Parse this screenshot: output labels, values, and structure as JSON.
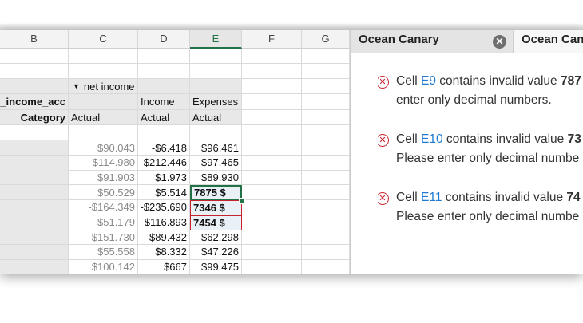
{
  "columns": [
    "B",
    "C",
    "D",
    "E",
    "F",
    "G"
  ],
  "selected_column": "E",
  "header_rows": {
    "c_row1": "net income",
    "b_row2": "A_income_acc",
    "d_row2": "Income",
    "e_row2": "Expenses",
    "b_row3": "Category",
    "c_row3": "Actual",
    "d_row3": "Actual",
    "e_row3": "Actual"
  },
  "rows": [
    {
      "c": "$90.043",
      "d": "-$6.418",
      "e": "$96.461"
    },
    {
      "c": "-$114.980",
      "d": "-$212.446",
      "e": "$97.465"
    },
    {
      "c": "$91.903",
      "d": "$1.973",
      "e": "$89.930"
    },
    {
      "c": "$50.529",
      "d": "$5.514",
      "e": "7875 $",
      "invalid": true
    },
    {
      "c": "-$164.349",
      "d": "-$235.690",
      "e": "7346 $",
      "invalid": true
    },
    {
      "c": "-$51.179",
      "d": "-$116.893",
      "e": "7454 $",
      "invalid": true
    },
    {
      "c": "$151.730",
      "d": "$89.432",
      "e": "$62.298"
    },
    {
      "c": "$55.558",
      "d": "$8.332",
      "e": "$47.226"
    },
    {
      "c": "$100.142",
      "d": "$667",
      "e": "$99.475"
    }
  ],
  "panel": {
    "tabs": [
      {
        "label": "Ocean Canary",
        "active": true
      },
      {
        "label": "Ocean Canary"
      }
    ],
    "messages": [
      {
        "pre": "Cell ",
        "cell": "E9",
        "mid": " contains invalid value ",
        "value": "787",
        "line2": "enter only decimal numbers."
      },
      {
        "pre": "Cell ",
        "cell": "E10",
        "mid": " contains invalid value ",
        "value": "73",
        "line2": "Please enter only decimal numbe"
      },
      {
        "pre": "Cell ",
        "cell": "E11",
        "mid": " contains invalid value ",
        "value": "74",
        "line2": "Please enter only decimal numbe"
      }
    ]
  },
  "colors": {
    "selection": "#217346",
    "error": "#c8232c",
    "link": "#1f7ad4"
  }
}
